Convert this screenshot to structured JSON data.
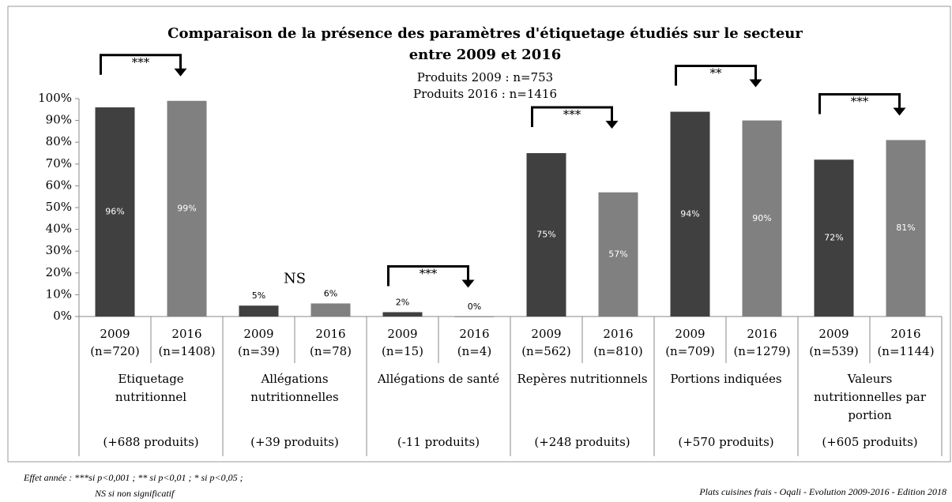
{
  "chart_data": {
    "type": "bar",
    "title": [
      "Comparaison de la présence des paramètres d'étiquetage étudiés sur le secteur",
      "entre 2009 et 2016"
    ],
    "subtitle": [
      "Produits 2009 : n=753",
      "Produits 2016 : n=1416"
    ],
    "categories": [
      {
        "year": "2009",
        "n": "(n=720)"
      },
      {
        "year": "2016",
        "n": "(n=1408)"
      },
      {
        "year": "2009",
        "n": "(n=39)"
      },
      {
        "year": "2016",
        "n": "(n=78)"
      },
      {
        "year": "2009",
        "n": "(n=15)"
      },
      {
        "year": "2016",
        "n": "(n=4)"
      },
      {
        "year": "2009",
        "n": "(n=562)"
      },
      {
        "year": "2016",
        "n": "(n=810)"
      },
      {
        "year": "2009",
        "n": "(n=709)"
      },
      {
        "year": "2016",
        "n": "(n=1279)"
      },
      {
        "year": "2009",
        "n": "(n=539)"
      },
      {
        "year": "2016",
        "n": "(n=1144)"
      }
    ],
    "values": [
      96,
      99,
      5,
      6,
      2,
      0,
      75,
      57,
      94,
      90,
      72,
      81
    ],
    "value_labels": [
      "96%",
      "99%",
      "5%",
      "6%",
      "2%",
      "0%",
      "75%",
      "57%",
      "94%",
      "90%",
      "72%",
      "81%"
    ],
    "colors": [
      "#404040",
      "#808080"
    ],
    "groups": [
      {
        "label": [
          "Etiquetage",
          "nutritionnel"
        ],
        "note": "(+688 produits)",
        "significance": "***",
        "bracket": true
      },
      {
        "label": [
          "Allégations",
          "nutritionnelles"
        ],
        "note": "(+39 produits)",
        "significance": "NS",
        "bracket": false
      },
      {
        "label": [
          "Allégations de santé"
        ],
        "note": "(-11 produits)",
        "significance": "***",
        "bracket": true
      },
      {
        "label": [
          "Repères nutritionnels"
        ],
        "note": "(+248 produits)",
        "significance": "***",
        "bracket": true
      },
      {
        "label": [
          "Portions indiquées"
        ],
        "note": "(+570 produits)",
        "significance": "**",
        "bracket": true
      },
      {
        "label": [
          "Valeurs",
          "nutritionnelles par",
          "portion"
        ],
        "note": "(+605 produits)",
        "significance": "***",
        "bracket": true
      }
    ],
    "ylim": [
      0,
      100
    ],
    "yticks": [
      {
        "value": 0,
        "label": "0%"
      },
      {
        "value": 10,
        "label": "10%"
      },
      {
        "value": 20,
        "label": "20%"
      },
      {
        "value": 30,
        "label": "30%"
      },
      {
        "value": 40,
        "label": "40%"
      },
      {
        "value": 50,
        "label": "50%"
      },
      {
        "value": 60,
        "label": "60%"
      },
      {
        "value": 70,
        "label": "70%"
      },
      {
        "value": 80,
        "label": "80%"
      },
      {
        "value": 90,
        "label": "90%"
      },
      {
        "value": 100,
        "label": "100%"
      }
    ],
    "footnote": [
      "Effet année : ***si p<0,001 ; ** si p<0,01 ; * si p<0,05 ;",
      "NS si non significatif"
    ],
    "source": "Plats cuisines frais - Oqali - Evolution 2009-2016 - Edition 2018"
  }
}
